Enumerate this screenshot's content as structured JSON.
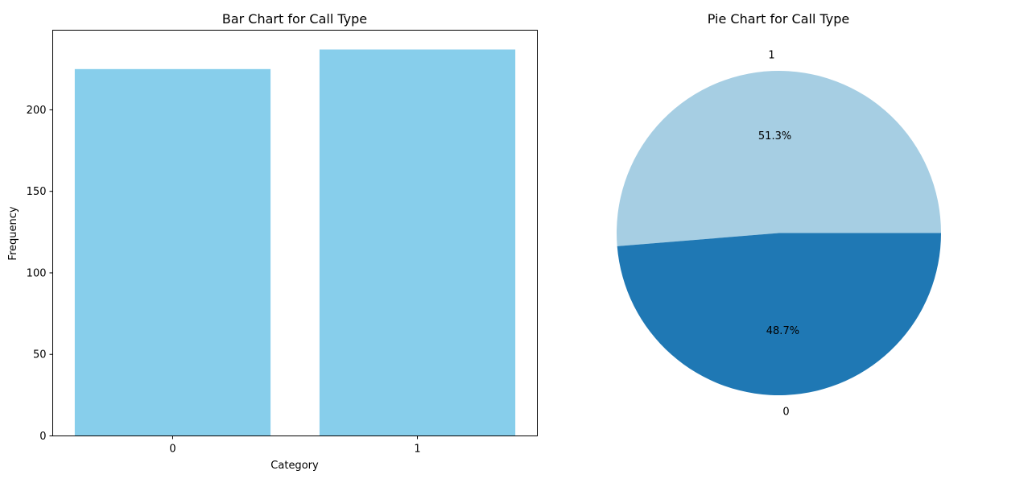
{
  "chart_data": [
    {
      "type": "bar",
      "title": "Bar Chart for Call Type",
      "xlabel": "Category",
      "ylabel": "Frequency",
      "categories": [
        "0",
        "1"
      ],
      "values": [
        225,
        237
      ],
      "ylim": [
        0,
        248.85
      ],
      "yticks": [
        0,
        50,
        100,
        150,
        200
      ],
      "bar_color": "#87ceeb",
      "grid": false,
      "legend": "none"
    },
    {
      "type": "pie",
      "title": "Pie Chart for Call Type",
      "categories": [
        "1",
        "0"
      ],
      "values": [
        237,
        225
      ],
      "percent_labels": [
        "51.3%",
        "48.7%"
      ],
      "colors": [
        "#a6cee3",
        "#1f78b4"
      ],
      "start_angle_deg": 0,
      "direction": "counterclockwise",
      "legend": "none"
    }
  ]
}
